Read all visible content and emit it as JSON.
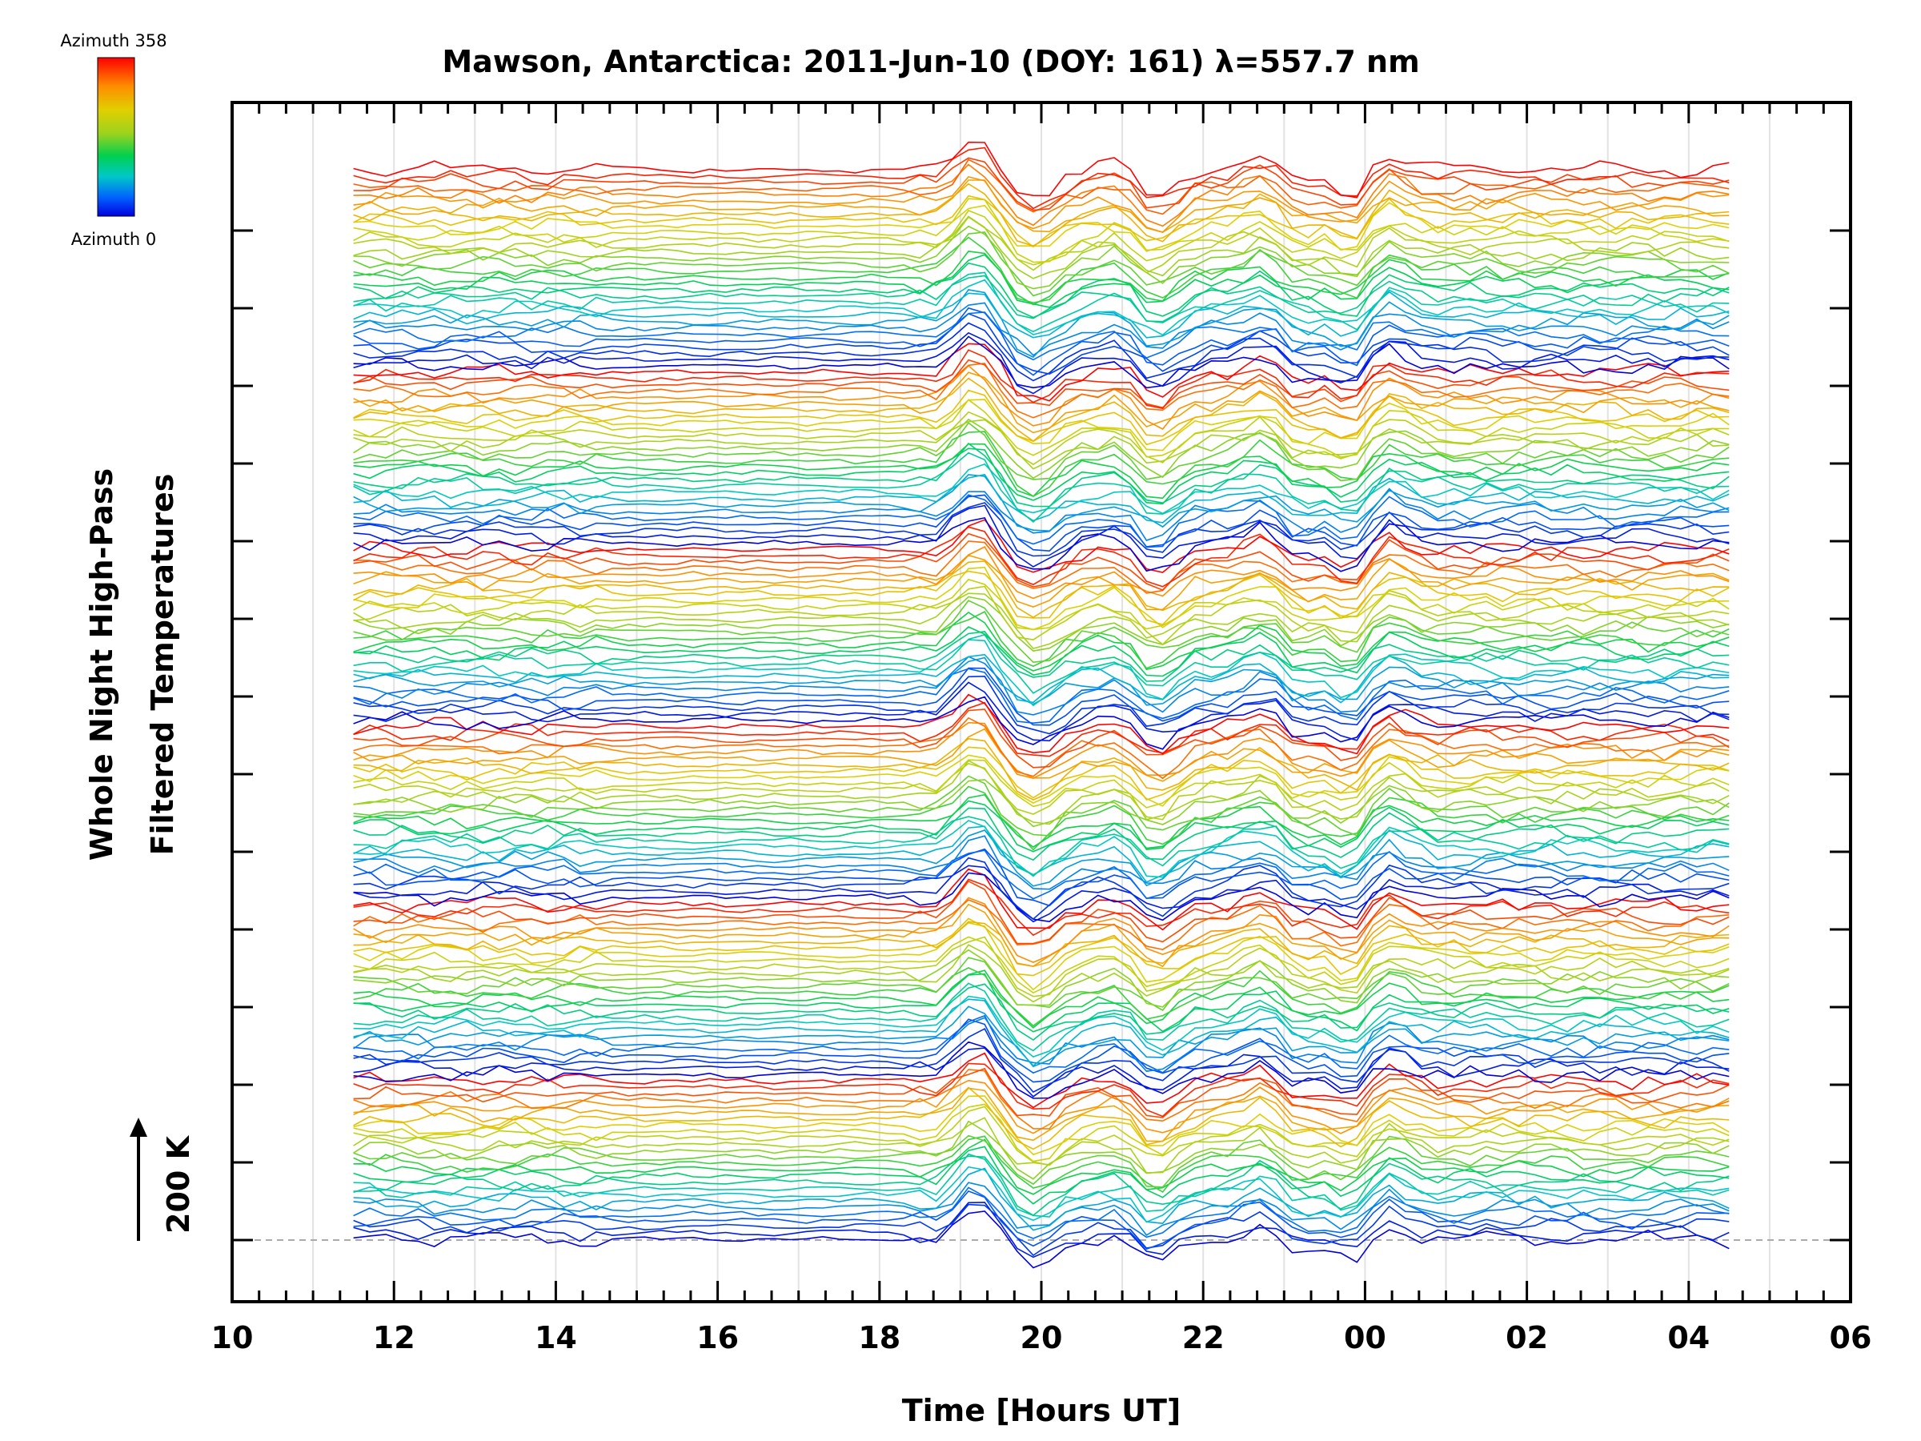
{
  "chart_data": {
    "type": "line",
    "title": "Mawson, Antarctica: 2011-Jun-10 (DOY: 161) λ=557.7 nm",
    "xlabel": "Time [Hours UT]",
    "ylabel": [
      "Whole Night High-Pass",
      "Filtered Temperatures"
    ],
    "scale_bar_label": "200 K",
    "x_tick_labels": [
      "10",
      "12",
      "14",
      "16",
      "18",
      "20",
      "22",
      "00",
      "02",
      "04",
      "06"
    ],
    "x_range_hours": [
      10,
      30
    ],
    "data_x_range_hours": [
      11.5,
      28.5
    ],
    "sample_interval_hours": 0.2,
    "n_traces": 170,
    "n_y_major_ticks": 14,
    "colorbar": {
      "top_label": "Azimuth 358",
      "bottom_label": "Azimuth 0",
      "colors": [
        "#ff0000",
        "#ff8c00",
        "#e0d000",
        "#9bd21e",
        "#00d050",
        "#00c8c8",
        "#0064ff",
        "#0000e0"
      ]
    },
    "azimuth_groups": [
      {
        "traces": [
          1,
          26
        ],
        "note": "repeating blue-green-yellow-red azimuth sweep"
      },
      {
        "traces": [
          27,
          54
        ]
      },
      {
        "traces": [
          55,
          82
        ]
      },
      {
        "traces": [
          83,
          110
        ]
      },
      {
        "traces": [
          111,
          138
        ]
      },
      {
        "traces": [
          139,
          170
        ]
      }
    ],
    "disturbance_events_hours_UT": [
      {
        "time": 19.2,
        "description": "wave onset, large positive excursion"
      },
      {
        "time": 19.9,
        "description": "sharp dip"
      },
      {
        "time": 21.1,
        "description": "peak"
      },
      {
        "time": 21.3,
        "description": "sharp dip"
      },
      {
        "time": 22.8,
        "description": "peak"
      },
      {
        "time": 23.1,
        "description": "dip"
      },
      {
        "time": 23.9,
        "description": "deep minimum near 00 UT"
      },
      {
        "time": 24.1,
        "description": "sharp recovery peak"
      }
    ]
  }
}
